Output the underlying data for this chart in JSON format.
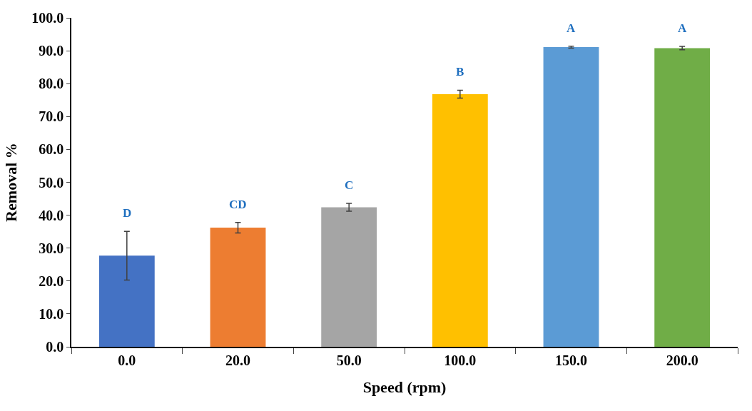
{
  "chart_data": {
    "type": "bar",
    "xlabel": "Speed (rpm)",
    "ylabel": "Removal %",
    "categories": [
      "0.0",
      "20.0",
      "50.0",
      "100.0",
      "150.0",
      "200.0"
    ],
    "values": [
      27.7,
      36.2,
      42.4,
      76.8,
      91.1,
      90.8
    ],
    "errors": [
      7.4,
      1.6,
      1.2,
      1.2,
      0.3,
      0.5
    ],
    "colors": [
      "#4472c4",
      "#ed7d31",
      "#a5a5a5",
      "#ffc000",
      "#5b9bd5",
      "#70ad47"
    ],
    "ylim": [
      0,
      100
    ],
    "yticks": [
      {
        "value": 0,
        "label": "0.0"
      },
      {
        "value": 10,
        "label": "10.0"
      },
      {
        "value": 20,
        "label": "20.0"
      },
      {
        "value": 30,
        "label": "30.0"
      },
      {
        "value": 40,
        "label": "40.0"
      },
      {
        "value": 50,
        "label": "50.0"
      },
      {
        "value": 60,
        "label": "60.0"
      },
      {
        "value": 70,
        "label": "70.0"
      },
      {
        "value": 80,
        "label": "80.0"
      },
      {
        "value": 90,
        "label": "90.0"
      },
      {
        "value": 100,
        "label": "100.0"
      }
    ],
    "annotations": [
      "D",
      "CD",
      "C",
      "B",
      "A",
      "A"
    ]
  }
}
